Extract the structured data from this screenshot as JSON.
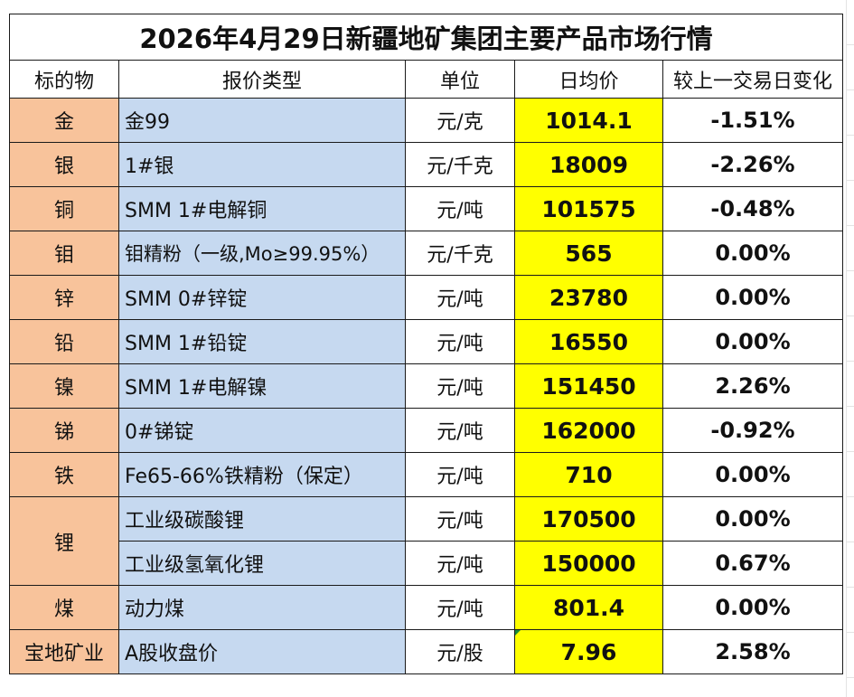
{
  "title": "2026年4月29日新疆地矿集团主要产品市场行情",
  "headers": {
    "name": "标的物",
    "type": "报价类型",
    "unit": "单位",
    "price": "日均价",
    "change": "较上一交易日变化"
  },
  "rows": [
    {
      "name": "金",
      "type": "金99",
      "unit": "元/克",
      "price": "1014.1",
      "change": "-1.51%",
      "trend": "neg"
    },
    {
      "name": "银",
      "type": "1#银",
      "unit": "元/千克",
      "price": "18009",
      "change": "-2.26%",
      "trend": "neg"
    },
    {
      "name": "铜",
      "type": "SMM 1#电解铜",
      "unit": "元/吨",
      "price": "101575",
      "change": "-0.48%",
      "trend": "neg"
    },
    {
      "name": "钼",
      "type": "钼精粉（一级,Mo≥99.95%）",
      "unit": "元/千克",
      "price": "565",
      "change": "0.00%",
      "trend": "zero"
    },
    {
      "name": "锌",
      "type": "SMM 0#锌锭",
      "unit": "元/吨",
      "price": "23780",
      "change": "0.00%",
      "trend": "zero"
    },
    {
      "name": "铅",
      "type": "SMM 1#铅锭",
      "unit": "元/吨",
      "price": "16550",
      "change": "0.00%",
      "trend": "zero"
    },
    {
      "name": "镍",
      "type": "SMM 1#电解镍",
      "unit": "元/吨",
      "price": "151450",
      "change": "2.26%",
      "trend": "pos"
    },
    {
      "name": "锑",
      "type": "0#锑锭",
      "unit": "元/吨",
      "price": "162000",
      "change": "-0.92%",
      "trend": "neg"
    },
    {
      "name": "铁",
      "type": "Fe65-66%铁精粉（保定）",
      "unit": "元/吨",
      "price": "710",
      "change": "0.00%",
      "trend": "zero"
    },
    {
      "name": "锂",
      "type": "工业级碳酸锂",
      "unit": "元/吨",
      "price": "170500",
      "change": "0.00%",
      "trend": "zero"
    },
    {
      "name": "锂",
      "type": "工业级氢氧化锂",
      "unit": "元/吨",
      "price": "150000",
      "change": "0.67%",
      "trend": "pos"
    },
    {
      "name": "煤",
      "type": "动力煤",
      "unit": "元/吨",
      "price": "801.4",
      "change": "0.00%",
      "trend": "zero"
    },
    {
      "name": "宝地矿业",
      "type": "A股收盘价",
      "unit": "元/股",
      "price": "7.96",
      "change": "2.58%",
      "trend": "pos"
    }
  ],
  "colors": {
    "name_fill": "#f8c39b",
    "type_fill": "#c6d9f0",
    "price_fill": "#ffff00",
    "negative": "#1aa84a",
    "positive": "#e8201e"
  }
}
